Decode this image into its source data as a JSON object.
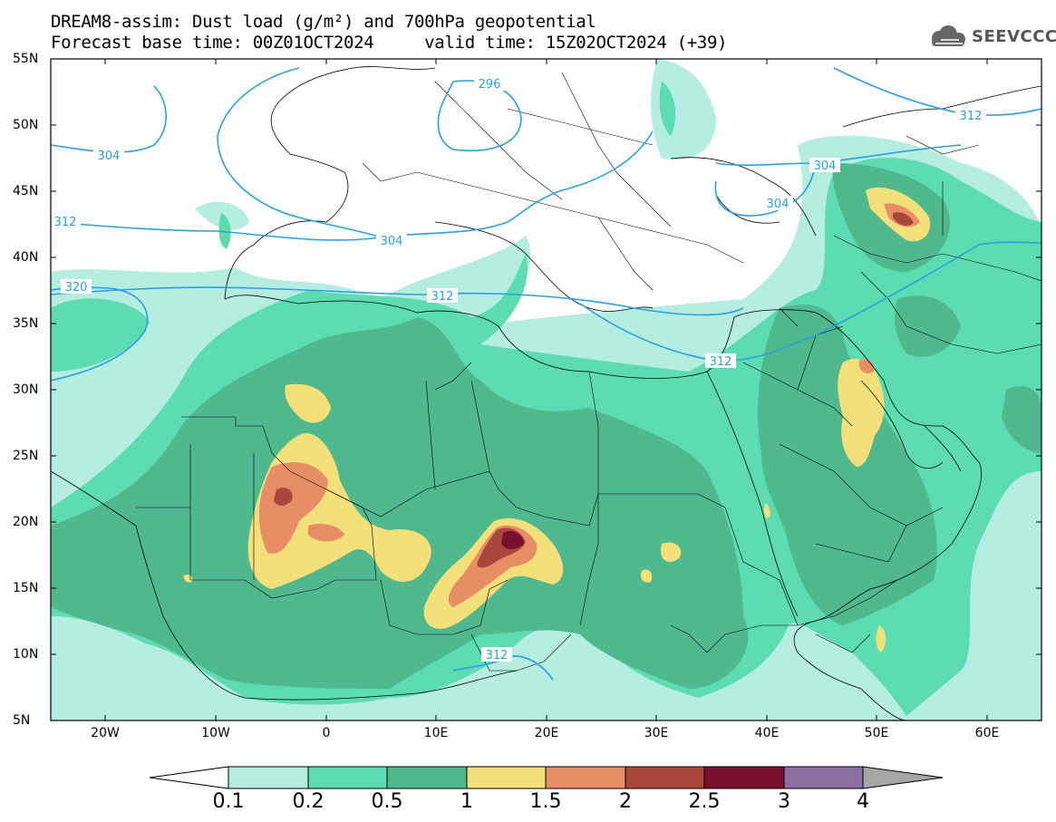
{
  "title": {
    "line1": "DREAM8-assim: Dust load (g/m²) and 700hPa geopotential",
    "line2": "Forecast base time: 00Z01OCT2024     valid time: 15Z02OCT2024 (+39)"
  },
  "logo": {
    "text": "SEEVCCC",
    "icon": "cloud-icon"
  },
  "lat_ticks": [
    "55N",
    "50N",
    "45N",
    "40N",
    "35N",
    "30N",
    "25N",
    "20N",
    "15N",
    "10N",
    "5N"
  ],
  "lon_ticks": [
    "20W",
    "10W",
    "0",
    "10E",
    "20E",
    "30E",
    "40E",
    "50E",
    "60E"
  ],
  "contour_labels": [
    "296",
    "304",
    "304",
    "304",
    "304",
    "312",
    "312",
    "312",
    "312",
    "312",
    "320"
  ],
  "colorbar": {
    "labels": [
      "0.1",
      "0.2",
      "0.5",
      "1",
      "1.5",
      "2",
      "2.5",
      "3",
      "4"
    ],
    "colors": [
      "#b5ede0",
      "#5cdcb0",
      "#4fb88c",
      "#f4e07a",
      "#e88e66",
      "#a9473c",
      "#780f2f",
      "#8c6ea0",
      "#a6a6a6"
    ]
  },
  "colors": {
    "level_0_1": "#b5ede0",
    "level_0_2": "#5cdcb0",
    "level_0_5": "#4fb88c",
    "level_1": "#f4e07a",
    "level_1_5": "#e88e66",
    "level_2": "#a9473c",
    "level_2_5": "#780f2f",
    "geopotential": "#2aa0e0"
  }
}
